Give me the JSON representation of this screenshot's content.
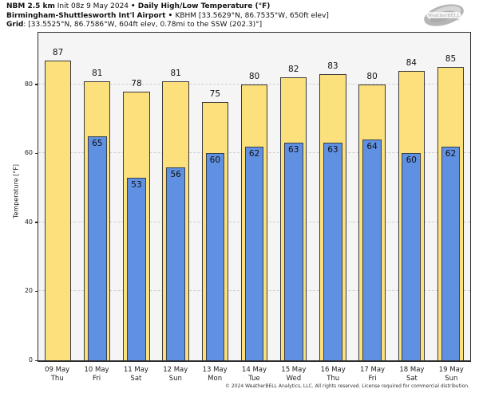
{
  "header": {
    "model": "NBM 2.5 km",
    "init": " Init 08z 9 May 2024 ",
    "bullet1": "• ",
    "title": "Daily High/Low Temperature (°F)",
    "station_name": "Birmingham-Shuttlesworth Int'l Airport",
    "bullet2": " • ",
    "station_info": "KBHM [33.5629°N, 86.7535°W, 650ft elev]",
    "grid_label": "Grid",
    "grid_info": ": [33.5525°N, 86.7586°W, 604ft elev, 0.78mi to the SSW (202.3)°]"
  },
  "logo": {
    "text": "WeatherBELL",
    "subtext": "Analytics LLC"
  },
  "chart_data": {
    "type": "bar",
    "title": "Daily High/Low Temperature (°F)",
    "ylabel": "Temperature [°F]",
    "ylim": [
      0,
      95
    ],
    "yticks": [
      0,
      20,
      40,
      60,
      80
    ],
    "grid": "dashed horizontal at yticks (20-80)",
    "legend_position": "none",
    "categories": [
      {
        "date": "09 May",
        "day": "Thu"
      },
      {
        "date": "10 May",
        "day": "Fri"
      },
      {
        "date": "11 May",
        "day": "Sat"
      },
      {
        "date": "12 May",
        "day": "Sun"
      },
      {
        "date": "13 May",
        "day": "Mon"
      },
      {
        "date": "14 May",
        "day": "Tue"
      },
      {
        "date": "15 May",
        "day": "Wed"
      },
      {
        "date": "16 May",
        "day": "Thu"
      },
      {
        "date": "17 May",
        "day": "Fri"
      },
      {
        "date": "18 May",
        "day": "Sat"
      },
      {
        "date": "19 May",
        "day": "Sun"
      }
    ],
    "series": [
      {
        "name": "High",
        "color": "#fce07c",
        "values": [
          87,
          81,
          78,
          81,
          75,
          80,
          82,
          83,
          80,
          84,
          85
        ]
      },
      {
        "name": "Low",
        "color": "#6090e2",
        "values": [
          null,
          65,
          53,
          56,
          60,
          62,
          63,
          63,
          64,
          60,
          62
        ]
      }
    ]
  },
  "footer": {
    "copyright": "© 2024 WeatherBELL Analytics, LLC. All rights reserved. License required for commercial distribution."
  }
}
